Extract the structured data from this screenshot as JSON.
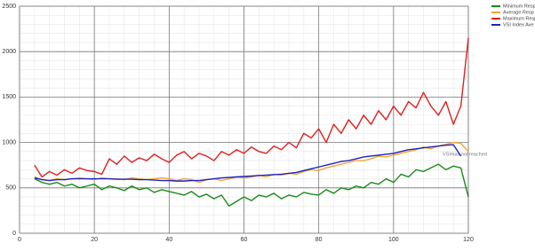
{
  "chart_data": {
    "type": "line",
    "x": [
      4,
      6,
      8,
      10,
      12,
      14,
      16,
      18,
      20,
      22,
      24,
      26,
      28,
      30,
      32,
      34,
      36,
      38,
      40,
      42,
      44,
      46,
      48,
      50,
      52,
      54,
      56,
      58,
      60,
      62,
      64,
      66,
      68,
      70,
      72,
      74,
      76,
      78,
      80,
      82,
      84,
      86,
      88,
      90,
      92,
      94,
      96,
      98,
      100,
      102,
      104,
      106,
      108,
      110,
      112,
      114,
      116,
      118,
      120
    ],
    "series": [
      {
        "name": "Minimum Resp",
        "color": "#1a8a1a",
        "values": [
          600,
          560,
          540,
          560,
          520,
          540,
          500,
          520,
          540,
          480,
          520,
          500,
          470,
          520,
          480,
          500,
          450,
          480,
          460,
          440,
          420,
          460,
          400,
          430,
          380,
          420,
          300,
          350,
          400,
          360,
          420,
          400,
          440,
          380,
          420,
          400,
          450,
          430,
          420,
          480,
          440,
          500,
          480,
          520,
          500,
          560,
          540,
          600,
          560,
          650,
          620,
          700,
          680,
          720,
          760,
          700,
          740,
          720,
          400
        ]
      },
      {
        "name": "Average Resp",
        "color": "#f0a830",
        "values": [
          620,
          590,
          580,
          600,
          590,
          600,
          610,
          600,
          590,
          610,
          600,
          600,
          590,
          610,
          600,
          590,
          600,
          610,
          600,
          580,
          600,
          590,
          560,
          590,
          600,
          580,
          600,
          620,
          610,
          620,
          640,
          620,
          650,
          640,
          660,
          650,
          680,
          700,
          690,
          720,
          740,
          760,
          780,
          800,
          800,
          820,
          850,
          840,
          860,
          880,
          900,
          920,
          950,
          930,
          960,
          980,
          1000,
          990,
          900
        ]
      },
      {
        "name": "Maximum Resp",
        "color": "#e02020",
        "values": [
          750,
          620,
          680,
          640,
          700,
          660,
          720,
          690,
          680,
          650,
          820,
          760,
          850,
          780,
          830,
          800,
          870,
          820,
          780,
          860,
          900,
          820,
          880,
          850,
          800,
          900,
          860,
          920,
          880,
          950,
          900,
          880,
          960,
          920,
          1000,
          940,
          1100,
          1050,
          1150,
          1000,
          1200,
          1100,
          1250,
          1150,
          1300,
          1200,
          1350,
          1250,
          1400,
          1300,
          1450,
          1380,
          1550,
          1400,
          1300,
          1450,
          1200,
          1400,
          2150
        ]
      },
      {
        "name": "VSI Index Ave",
        "color": "#2020c0",
        "values": [
          610,
          590,
          580,
          590,
          590,
          600,
          600,
          600,
          600,
          600,
          600,
          595,
          595,
          595,
          590,
          590,
          585,
          580,
          580,
          575,
          575,
          580,
          580,
          590,
          600,
          610,
          615,
          620,
          625,
          630,
          635,
          640,
          645,
          650,
          660,
          670,
          690,
          710,
          730,
          750,
          770,
          790,
          800,
          820,
          840,
          850,
          860,
          870,
          880,
          900,
          920,
          930,
          940,
          950,
          960,
          970,
          975,
          850,
          null
        ]
      }
    ],
    "annotation": "VSImax not reached",
    "xlim": [
      0,
      120
    ],
    "xticks": [
      0,
      20,
      40,
      60,
      80,
      100,
      120
    ],
    "ylim": [
      0,
      2500
    ],
    "yticks": [
      0,
      500,
      1000,
      1500,
      2000,
      2500
    ],
    "grid": true,
    "minor_grid": true,
    "legend": "top-right"
  }
}
